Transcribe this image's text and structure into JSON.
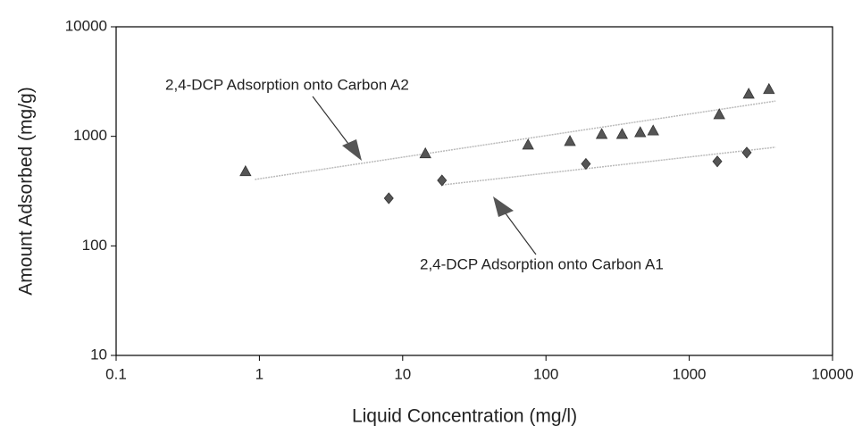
{
  "chart_data": {
    "type": "scatter",
    "x_label": "Liquid Concentration (mg/l)",
    "y_label": "Amount Adsorbed (mg/g)",
    "log_x": true,
    "log_y": true,
    "xlim": [
      0.1,
      10000
    ],
    "xticks": [
      0.1,
      1,
      10,
      100,
      1000,
      10000
    ],
    "ylim": [
      10,
      10000
    ],
    "yticks": [
      10,
      100,
      1000,
      10000
    ],
    "annotations": [
      "2,4-DCP Adsorption onto Carbon A2",
      "2,4-DCP Adsorption onto Carbon A1"
    ],
    "series": [
      {
        "marker": "triangle",
        "color": "#555555",
        "x": [
          0.8,
          14.4,
          75,
          147,
          245,
          340,
          455,
          560,
          1620,
          2600,
          3600
        ],
        "values": [
          480,
          700,
          840,
          905,
          1050,
          1050,
          1090,
          1130,
          1590,
          2450,
          2700
        ]
      },
      {
        "marker": "diamond",
        "color": "#555555",
        "x": [
          8,
          18.8,
          190,
          1570,
          2520
        ],
        "values": [
          272,
          396,
          560,
          590,
          710
        ]
      }
    ],
    "trendlines": [
      {
        "color": "#bbbbbb",
        "x": [
          0.93,
          4000
        ],
        "values": [
          404,
          2100
        ]
      },
      {
        "color": "#bbbbbb",
        "x": [
          18.9,
          4000
        ],
        "values": [
          360,
          795
        ]
      }
    ]
  }
}
